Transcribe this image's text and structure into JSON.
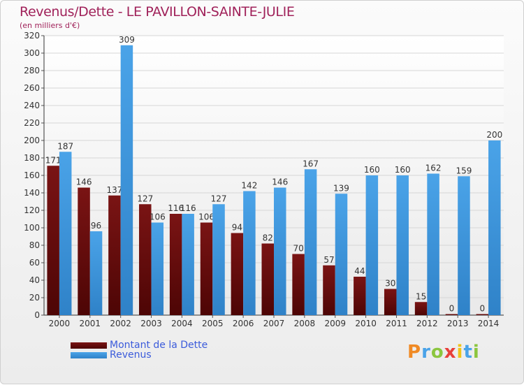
{
  "header": {
    "title": "Revenus/Dette - LE PAVILLON-SAINTE-JULIE",
    "subtitle": "(en milliers d'€)"
  },
  "legend": {
    "debt_label": "Montant de la Dette",
    "revenue_label": "Revenus"
  },
  "logo": {
    "text": "Proxiti"
  },
  "colors": {
    "debt": "#7a1414",
    "debt_dark": "#4d0505",
    "revenue": "#4aa3e8",
    "revenue_dark": "#2f82c8",
    "title": "#a0225a"
  },
  "chart_data": {
    "type": "bar",
    "categories": [
      "2000",
      "2001",
      "2002",
      "2003",
      "2004",
      "2005",
      "2006",
      "2007",
      "2008",
      "2009",
      "2010",
      "2011",
      "2012",
      "2013",
      "2014"
    ],
    "series": [
      {
        "name": "Montant de la Dette",
        "values": [
          171,
          146,
          137,
          127,
          116,
          106,
          94,
          82,
          70,
          57,
          44,
          30,
          15,
          0,
          0
        ]
      },
      {
        "name": "Revenus",
        "values": [
          187,
          96,
          309,
          106,
          116,
          127,
          142,
          146,
          167,
          139,
          160,
          160,
          162,
          159,
          200
        ]
      }
    ],
    "ylim": [
      0,
      320
    ],
    "yticks": [
      0,
      20,
      40,
      60,
      80,
      100,
      120,
      140,
      160,
      180,
      200,
      220,
      240,
      260,
      280,
      300,
      320
    ],
    "grid": true
  }
}
